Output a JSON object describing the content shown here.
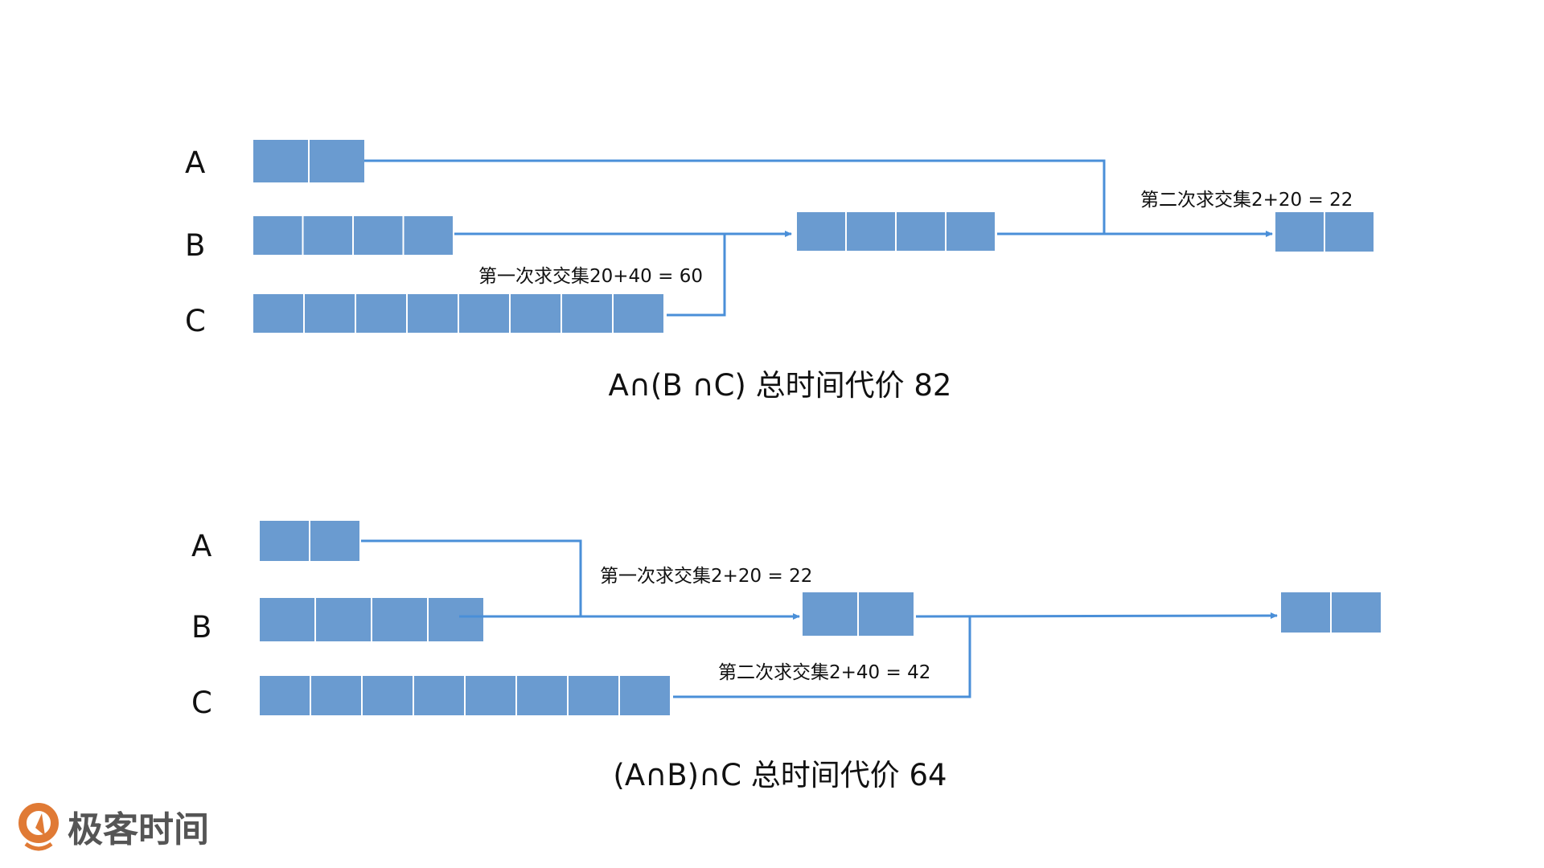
{
  "top": {
    "row_labels": [
      "A",
      "B",
      "C"
    ],
    "cells": {
      "A": 2,
      "B": 4,
      "C": 8,
      "intermediate": 4,
      "result": 2
    },
    "first_step_label": "第一次求交集20+40 = 60",
    "second_step_label": "第二次求交集2+20 = 22",
    "title": "A∩(B ∩C) 总时间代价 82"
  },
  "bottom": {
    "row_labels": [
      "A",
      "B",
      "C"
    ],
    "cells": {
      "A": 2,
      "B": 4,
      "C": 8,
      "intermediate": 2,
      "result": 2
    },
    "first_step_label": "第一次求交集2+20 = 22",
    "second_step_label": "第二次求交集2+40 = 42",
    "title": "(A∩B)∩C 总时间代价 64"
  },
  "logo": {
    "text": "极客时间"
  },
  "colors": {
    "cell": "#6a9bd0",
    "line": "#4a8fd8",
    "logo": "#e07a35"
  }
}
